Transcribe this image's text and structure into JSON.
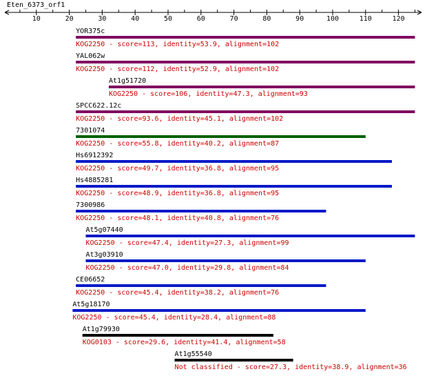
{
  "query": {
    "name": "Eten_6373_orf1",
    "length": 125
  },
  "ruler": {
    "ticks": [
      "10",
      "20",
      "30",
      "40",
      "50",
      "60",
      "70",
      "80",
      "90",
      "100",
      "110",
      "120"
    ],
    "tick_values": [
      10,
      20,
      30,
      40,
      50,
      60,
      70,
      80,
      90,
      100,
      110,
      120
    ]
  },
  "colors": {
    "purple": "#800060",
    "green": "#006000",
    "blue": "#0018c8",
    "black": "#000000",
    "desc_text": "#cc0000",
    "label_text": "#000000"
  },
  "hits": [
    {
      "name": "YOR375c",
      "desc": "KOG2250 - score=113, identity=53.9, alignment=102",
      "start": 22,
      "end": 125,
      "color": "purple"
    },
    {
      "name": "YAL062w",
      "desc": "KOG2250 - score=112, identity=52.9, alignment=102",
      "start": 22,
      "end": 125,
      "color": "purple"
    },
    {
      "name": "At1g51720",
      "desc": "KOG2250 - score=106, identity=47.3, alignment=93",
      "start": 32,
      "end": 125,
      "color": "purple"
    },
    {
      "name": "SPCC622.12c",
      "desc": "KOG2250 - score=93.6, identity=45.1, alignment=102",
      "start": 22,
      "end": 125,
      "color": "purple"
    },
    {
      "name": "7301074",
      "desc": "KOG2250 - score=55.8, identity=40.2, alignment=87",
      "start": 22,
      "end": 110,
      "color": "green"
    },
    {
      "name": "Hs6912392",
      "desc": "KOG2250 - score=49.7, identity=36.8, alignment=95",
      "start": 22,
      "end": 118,
      "color": "blue"
    },
    {
      "name": "Hs4885281",
      "desc": "KOG2250 - score=48.9, identity=36.8, alignment=95",
      "start": 22,
      "end": 118,
      "color": "blue"
    },
    {
      "name": "7300986",
      "desc": "KOG2250 - score=48.1, identity=40.8, alignment=76",
      "start": 22,
      "end": 98,
      "color": "blue"
    },
    {
      "name": "At5g07440",
      "desc": "KOG2250 - score=47.4, identity=27.3, alignment=99",
      "start": 25,
      "end": 125,
      "color": "blue"
    },
    {
      "name": "At3g03910",
      "desc": "KOG2250 - score=47.0, identity=29.8, alignment=84",
      "start": 25,
      "end": 110,
      "color": "blue"
    },
    {
      "name": "CE06652",
      "desc": "KOG2250 - score=45.4, identity=38.2, alignment=76",
      "start": 22,
      "end": 98,
      "color": "blue"
    },
    {
      "name": "At5g18170",
      "desc": "KOG2250 - score=45.4, identity=28.4, alignment=88",
      "start": 21,
      "end": 110,
      "color": "blue"
    },
    {
      "name": "At1g79930",
      "desc": "KOG0103 - score=29.6, identity=41.4, alignment=58",
      "start": 24,
      "end": 82,
      "color": "black"
    },
    {
      "name": "At1g55540",
      "desc": "Not classified - score=27.3, identity=38.9, alignment=36",
      "start": 52,
      "end": 88,
      "color": "black"
    }
  ]
}
